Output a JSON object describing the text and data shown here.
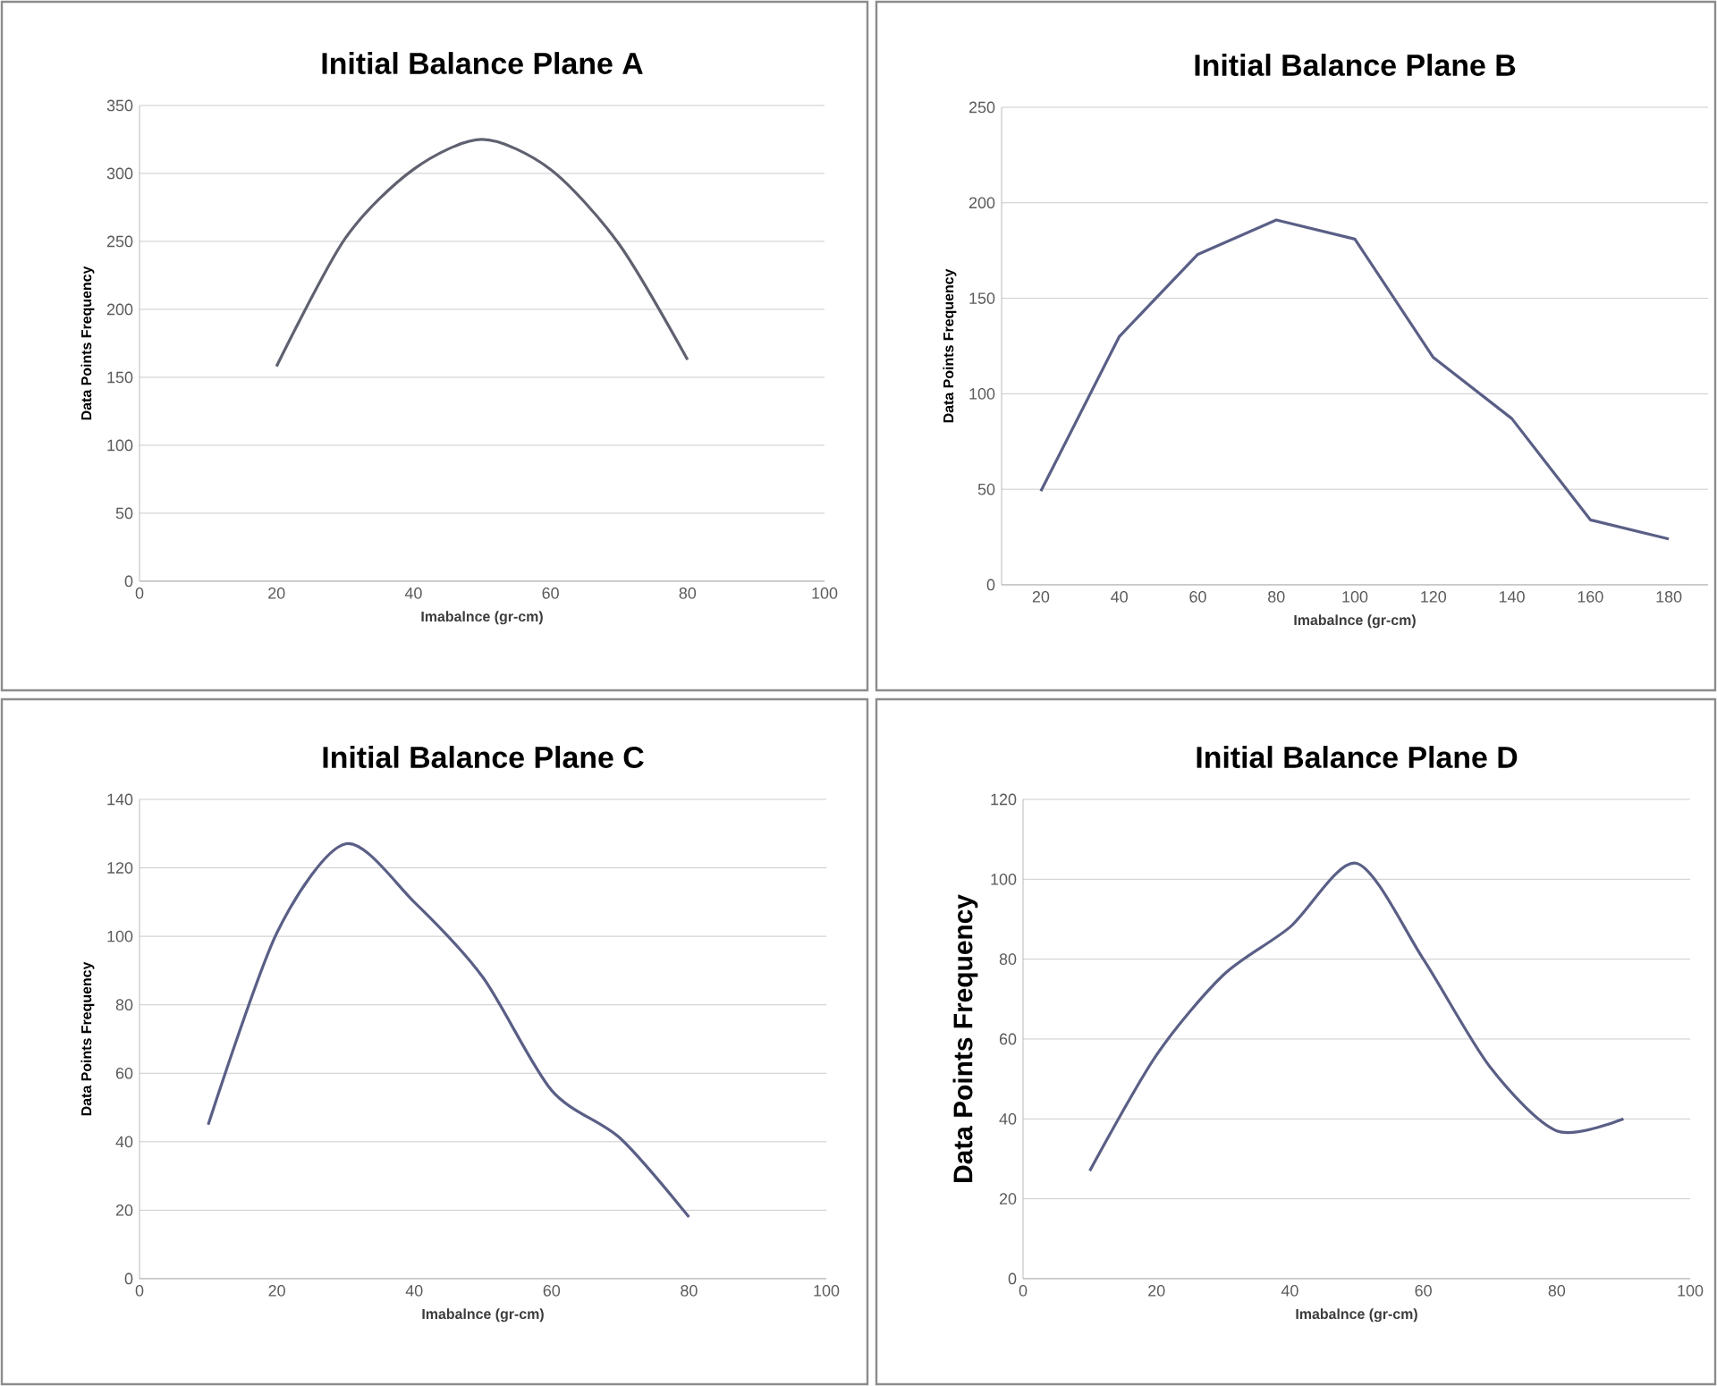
{
  "chart_data": [
    {
      "type": "line",
      "title": "Initial Balance Plane A",
      "xlabel": "Imabalnce (gr-cm)",
      "ylabel": "Data Points Frequency",
      "x": [
        20,
        30,
        40,
        50,
        60,
        70,
        80
      ],
      "values": [
        158,
        252,
        303,
        325,
        303,
        248,
        163
      ],
      "color": "#5f6170",
      "xlim": [
        0,
        100
      ],
      "xticks": [
        0,
        20,
        40,
        60,
        80,
        100
      ],
      "ylim": [
        0,
        350
      ],
      "yticks": [
        0,
        50,
        100,
        150,
        200,
        250,
        300,
        350
      ],
      "grid": "y"
    },
    {
      "type": "line",
      "title": "Initial Balance Plane B",
      "xlabel": "Imabalnce (gr-cm)",
      "ylabel": "Data Points Frequency",
      "categories": [
        "20",
        "40",
        "60",
        "80",
        "100",
        "120",
        "140",
        "160",
        "180"
      ],
      "values": [
        49,
        130,
        173,
        191,
        181,
        119,
        87,
        34,
        24
      ],
      "color": "#5a5f86",
      "ylim": [
        0,
        250
      ],
      "yticks": [
        0,
        50,
        100,
        150,
        200,
        250
      ],
      "grid": "y"
    },
    {
      "type": "line",
      "title": "Initial Balance Plane C",
      "xlabel": "Imabalnce (gr-cm)",
      "ylabel": "Data Points Frequency",
      "x": [
        10,
        20,
        30,
        40,
        50,
        60,
        70,
        80
      ],
      "values": [
        45,
        101,
        127,
        110,
        88,
        55,
        41,
        18
      ],
      "color": "#5a5f86",
      "xlim": [
        0,
        100
      ],
      "xticks": [
        0,
        20,
        40,
        60,
        80,
        100
      ],
      "ylim": [
        0,
        140
      ],
      "yticks": [
        0,
        20,
        40,
        60,
        80,
        100,
        120,
        140
      ],
      "grid": "y"
    },
    {
      "type": "line",
      "title": "Initial Balance Plane D",
      "xlabel": "Imabalnce (gr-cm)",
      "ylabel": "Data Points Frequency",
      "x": [
        10,
        20,
        30,
        40,
        50,
        60,
        70,
        80,
        90
      ],
      "values": [
        27,
        56,
        76,
        88,
        104,
        80,
        53,
        37,
        40
      ],
      "color": "#5a5f86",
      "xlim": [
        0,
        100
      ],
      "xticks": [
        0,
        20,
        40,
        60,
        80,
        100
      ],
      "ylim": [
        0,
        120
      ],
      "yticks": [
        0,
        20,
        40,
        60,
        80,
        100,
        120
      ],
      "grid": "y"
    }
  ]
}
